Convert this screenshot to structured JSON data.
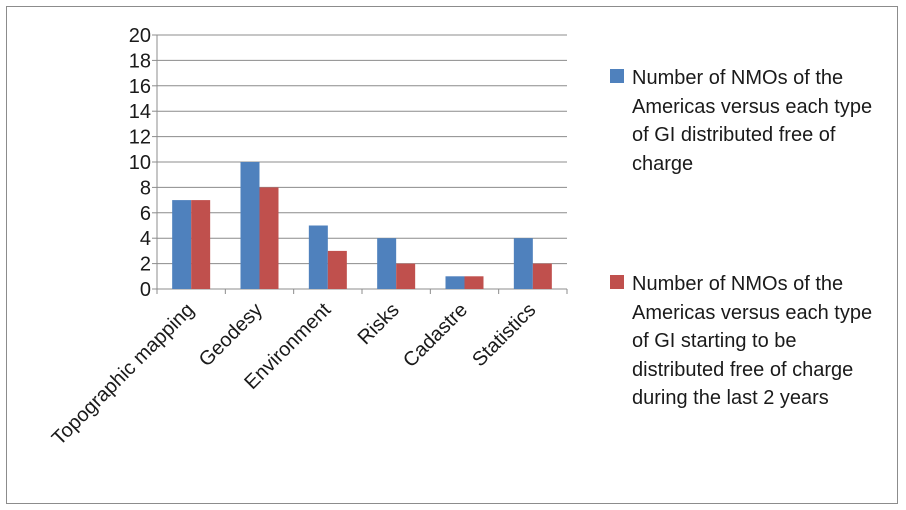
{
  "chart_data": {
    "type": "bar",
    "categories": [
      "Topographic mapping",
      "Geodesy",
      "Environment",
      "Risks",
      "Cadastre",
      "Statistics"
    ],
    "series": [
      {
        "name": "Number of NMOs of the Americas versus each type of GI distributed free of charge",
        "values": [
          7,
          10,
          5,
          4,
          1,
          4
        ],
        "color": "#4f81bd"
      },
      {
        "name": "Number of NMOs of the Americas versus each type of GI starting to be distributed free of charge during the last 2 years",
        "values": [
          7,
          8,
          3,
          2,
          1,
          2
        ],
        "color": "#c0504d"
      }
    ],
    "ylim": [
      0,
      20
    ],
    "yticks": [
      0,
      2,
      4,
      6,
      8,
      10,
      12,
      14,
      16,
      18,
      20
    ],
    "grid": true,
    "legend": "right"
  }
}
